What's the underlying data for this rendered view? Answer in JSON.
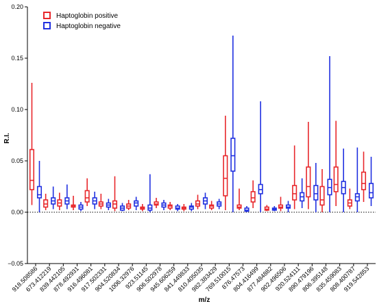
{
  "chart_data": {
    "type": "boxplot",
    "xlabel": "m/z",
    "ylabel": "R.I.",
    "ylim": [
      -0.05,
      0.2
    ],
    "yticks": [
      "0.20",
      "0.15",
      "0.10",
      "0.05",
      "0.00",
      "−0.05"
    ],
    "grid": false,
    "zero_line": "dotted",
    "legend_position": "top-left",
    "colors": {
      "positive": "#e8262a",
      "negative": "#1f2fe0"
    },
    "legend": {
      "positive_label": "Haptoglobin positive",
      "negative_label": "Haptoglobin negative"
    },
    "categories": [
      "918.508586",
      "673.412219",
      "839.442105",
      "878.492931",
      "916.496081",
      "917.502331",
      "904.520834",
      "1006.32976",
      "923.51145",
      "906.502978",
      "945.606259",
      "841.449833",
      "810.405035",
      "982.383429",
      "769.510015",
      "876.47573",
      "804.416499",
      "877.484882",
      "902.496506",
      "920.524111",
      "890.479196",
      "806.395148",
      "835.459083",
      "808.400787",
      "919.542853"
    ],
    "series": [
      {
        "name": "Haptoglobin positive",
        "key": "positive",
        "boxes": [
          {
            "min": 0.007,
            "q1": 0.022,
            "median": 0.031,
            "q3": 0.061,
            "max": 0.126
          },
          {
            "min": 0.002,
            "q1": 0.005,
            "median": 0.008,
            "q3": 0.012,
            "max": 0.018
          },
          {
            "min": 0.002,
            "q1": 0.006,
            "median": 0.009,
            "q3": 0.012,
            "max": 0.019
          },
          {
            "min": 0.002,
            "q1": 0.005,
            "median": 0.006,
            "q3": 0.007,
            "max": 0.016
          },
          {
            "min": 0.006,
            "q1": 0.01,
            "median": 0.014,
            "q3": 0.021,
            "max": 0.033
          },
          {
            "min": 0.003,
            "q1": 0.006,
            "median": 0.008,
            "q3": 0.01,
            "max": 0.018
          },
          {
            "min": 0.001,
            "q1": 0.004,
            "median": 0.008,
            "q3": 0.011,
            "max": 0.035
          },
          {
            "min": 0.002,
            "q1": 0.004,
            "median": 0.006,
            "q3": 0.008,
            "max": 0.012
          },
          {
            "min": 0.001,
            "q1": 0.003,
            "median": 0.004,
            "q3": 0.005,
            "max": 0.008
          },
          {
            "min": 0.004,
            "q1": 0.007,
            "median": 0.008,
            "q3": 0.01,
            "max": 0.014
          },
          {
            "min": 0.002,
            "q1": 0.004,
            "median": 0.006,
            "q3": 0.007,
            "max": 0.01
          },
          {
            "min": 0.001,
            "q1": 0.003,
            "median": 0.004,
            "q3": 0.005,
            "max": 0.008
          },
          {
            "min": 0.003,
            "q1": 0.006,
            "median": 0.008,
            "q3": 0.011,
            "max": 0.017
          },
          {
            "min": 0.002,
            "q1": 0.004,
            "median": 0.006,
            "q3": 0.007,
            "max": 0.011
          },
          {
            "min": 0.002,
            "q1": 0.016,
            "median": 0.033,
            "q3": 0.055,
            "max": 0.094
          },
          {
            "min": 0.002,
            "q1": 0.004,
            "median": 0.005,
            "q3": 0.007,
            "max": 0.023
          },
          {
            "min": 0.004,
            "q1": 0.01,
            "median": 0.014,
            "q3": 0.02,
            "max": 0.031
          },
          {
            "min": 0.001,
            "q1": 0.002,
            "median": 0.003,
            "q3": 0.005,
            "max": 0.007
          },
          {
            "min": 0.001,
            "q1": 0.004,
            "median": 0.005,
            "q3": 0.007,
            "max": 0.015
          },
          {
            "min": 0.003,
            "q1": 0.012,
            "median": 0.018,
            "q3": 0.026,
            "max": 0.065
          },
          {
            "min": 0.003,
            "q1": 0.015,
            "median": 0.025,
            "q3": 0.044,
            "max": 0.088
          },
          {
            "min": 0.0,
            "q1": 0.007,
            "median": 0.012,
            "q3": 0.025,
            "max": 0.042
          },
          {
            "min": 0.006,
            "q1": 0.02,
            "median": 0.027,
            "q3": 0.044,
            "max": 0.089
          },
          {
            "min": 0.003,
            "q1": 0.006,
            "median": 0.009,
            "q3": 0.012,
            "max": 0.023
          },
          {
            "min": 0.01,
            "q1": 0.022,
            "median": 0.028,
            "q3": 0.039,
            "max": 0.059
          }
        ]
      },
      {
        "name": "Haptoglobin negative",
        "key": "negative",
        "boxes": [
          {
            "min": 0.0,
            "q1": 0.014,
            "median": 0.017,
            "q3": 0.025,
            "max": 0.05
          },
          {
            "min": 0.003,
            "q1": 0.008,
            "median": 0.011,
            "q3": 0.014,
            "max": 0.025
          },
          {
            "min": 0.003,
            "q1": 0.008,
            "median": 0.011,
            "q3": 0.014,
            "max": 0.027
          },
          {
            "min": 0.001,
            "q1": 0.003,
            "median": 0.005,
            "q3": 0.007,
            "max": 0.01
          },
          {
            "min": 0.003,
            "q1": 0.008,
            "median": 0.011,
            "q3": 0.014,
            "max": 0.02
          },
          {
            "min": 0.002,
            "q1": 0.005,
            "median": 0.007,
            "q3": 0.009,
            "max": 0.013
          },
          {
            "min": 0.001,
            "q1": 0.002,
            "median": 0.004,
            "q3": 0.006,
            "max": 0.009
          },
          {
            "min": 0.002,
            "q1": 0.006,
            "median": 0.009,
            "q3": 0.011,
            "max": 0.015
          },
          {
            "min": 0.0,
            "q1": 0.002,
            "median": 0.004,
            "q3": 0.007,
            "max": 0.037
          },
          {
            "min": 0.002,
            "q1": 0.005,
            "median": 0.007,
            "q3": 0.009,
            "max": 0.012
          },
          {
            "min": 0.001,
            "q1": 0.003,
            "median": 0.004,
            "q3": 0.006,
            "max": 0.008
          },
          {
            "min": 0.001,
            "q1": 0.003,
            "median": 0.005,
            "q3": 0.006,
            "max": 0.009
          },
          {
            "min": 0.003,
            "q1": 0.008,
            "median": 0.011,
            "q3": 0.014,
            "max": 0.019
          },
          {
            "min": 0.003,
            "q1": 0.006,
            "median": 0.008,
            "q3": 0.01,
            "max": 0.013
          },
          {
            "min": 0.0,
            "q1": 0.04,
            "median": 0.055,
            "q3": 0.072,
            "max": 0.172
          },
          {
            "min": 0.0,
            "q1": 0.001,
            "median": 0.002,
            "q3": 0.004,
            "max": 0.006
          },
          {
            "min": 0.0,
            "q1": 0.018,
            "median": 0.022,
            "q3": 0.027,
            "max": 0.108
          },
          {
            "min": 0.001,
            "q1": 0.002,
            "median": 0.003,
            "q3": 0.004,
            "max": 0.006
          },
          {
            "min": 0.0,
            "q1": 0.004,
            "median": 0.005,
            "q3": 0.007,
            "max": 0.011
          },
          {
            "min": 0.004,
            "q1": 0.011,
            "median": 0.015,
            "q3": 0.019,
            "max": 0.033
          },
          {
            "min": 0.0,
            "q1": 0.012,
            "median": 0.018,
            "q3": 0.026,
            "max": 0.048
          },
          {
            "min": 0.0,
            "q1": 0.017,
            "median": 0.024,
            "q3": 0.032,
            "max": 0.152
          },
          {
            "min": 0.0,
            "q1": 0.018,
            "median": 0.024,
            "q3": 0.03,
            "max": 0.062
          },
          {
            "min": 0.0,
            "q1": 0.011,
            "median": 0.015,
            "q3": 0.018,
            "max": 0.063
          },
          {
            "min": 0.006,
            "q1": 0.014,
            "median": 0.019,
            "q3": 0.028,
            "max": 0.054
          }
        ]
      }
    ]
  }
}
